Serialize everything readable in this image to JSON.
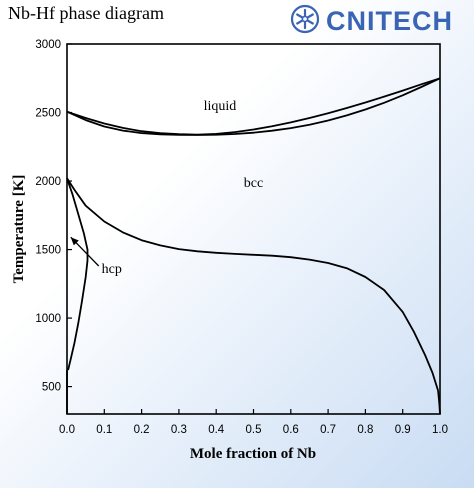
{
  "header": {
    "title": "Nb-Hf phase diagram",
    "logo_text": "CNITECH"
  },
  "colors": {
    "logo": "#3a64b4",
    "curve": "#000000",
    "background_light": "#ffffff",
    "background_accent": "#c9dcf3"
  },
  "chart_data": {
    "type": "line",
    "title": "Nb-Hf phase diagram",
    "xlabel": "Mole fraction of Nb",
    "ylabel": "Temperature [K]",
    "xlim": [
      0.0,
      1.0
    ],
    "ylim": [
      300,
      3000
    ],
    "x_ticks": [
      "0.0",
      "0.1",
      "0.2",
      "0.3",
      "0.4",
      "0.5",
      "0.6",
      "0.7",
      "0.8",
      "0.9",
      "1.0"
    ],
    "y_ticks": [
      "500",
      "1000",
      "1500",
      "2000",
      "2500",
      "3000"
    ],
    "grid": false,
    "phase_labels": [
      {
        "text": "liquid",
        "x": 0.41,
        "y": 2520
      },
      {
        "text": "bcc",
        "x": 0.5,
        "y": 1955
      },
      {
        "text": "hcp",
        "x": 0.12,
        "y": 1330
      }
    ],
    "arrow": {
      "from": [
        0.085,
        1380
      ],
      "to": [
        0.01,
        1590
      ]
    },
    "series": [
      {
        "id": "liquidus",
        "x": [
          0.0,
          0.05,
          0.1,
          0.15,
          0.2,
          0.25,
          0.3,
          0.35,
          0.4,
          0.45,
          0.5,
          0.55,
          0.6,
          0.65,
          0.7,
          0.75,
          0.8,
          0.85,
          0.9,
          0.95,
          1.0
        ],
        "y": [
          2506,
          2460,
          2420,
          2388,
          2364,
          2350,
          2342,
          2339,
          2344,
          2357,
          2376,
          2400,
          2428,
          2460,
          2495,
          2533,
          2573,
          2616,
          2660,
          2706,
          2750
        ]
      },
      {
        "id": "solidus",
        "x": [
          0.0,
          0.05,
          0.1,
          0.15,
          0.2,
          0.25,
          0.3,
          0.35,
          0.4,
          0.45,
          0.5,
          0.55,
          0.6,
          0.65,
          0.7,
          0.75,
          0.8,
          0.85,
          0.9,
          0.95,
          1.0
        ],
        "y": [
          2506,
          2445,
          2398,
          2368,
          2350,
          2341,
          2337,
          2336,
          2338,
          2343,
          2353,
          2367,
          2386,
          2411,
          2442,
          2479,
          2522,
          2571,
          2626,
          2686,
          2750
        ]
      },
      {
        "id": "bcc-boundary",
        "x": [
          0.0,
          0.02,
          0.05,
          0.1,
          0.15,
          0.2,
          0.25,
          0.3,
          0.35,
          0.4,
          0.45,
          0.5,
          0.55,
          0.6,
          0.65,
          0.7,
          0.75,
          0.8,
          0.85,
          0.9,
          0.93,
          0.96,
          0.98,
          0.995
        ],
        "y": [
          2020,
          1935,
          1820,
          1705,
          1625,
          1568,
          1530,
          1503,
          1487,
          1476,
          1468,
          1462,
          1455,
          1444,
          1427,
          1402,
          1364,
          1300,
          1205,
          1045,
          900,
          730,
          600,
          470
        ]
      },
      {
        "id": "hcp-boundary",
        "x": [
          0.0,
          0.015,
          0.03,
          0.045,
          0.055,
          0.055,
          0.05,
          0.04,
          0.03,
          0.02,
          0.01,
          0.003
        ],
        "y": [
          2020,
          1900,
          1760,
          1620,
          1500,
          1420,
          1300,
          1120,
          960,
          820,
          700,
          620
        ]
      },
      {
        "id": "hcp-lower",
        "x": [
          0.0,
          0.0
        ],
        "y": [
          620,
          300
        ]
      },
      {
        "id": "nb-edge",
        "x": [
          0.995,
          0.998,
          1.0
        ],
        "y": [
          470,
          380,
          300
        ]
      }
    ]
  }
}
